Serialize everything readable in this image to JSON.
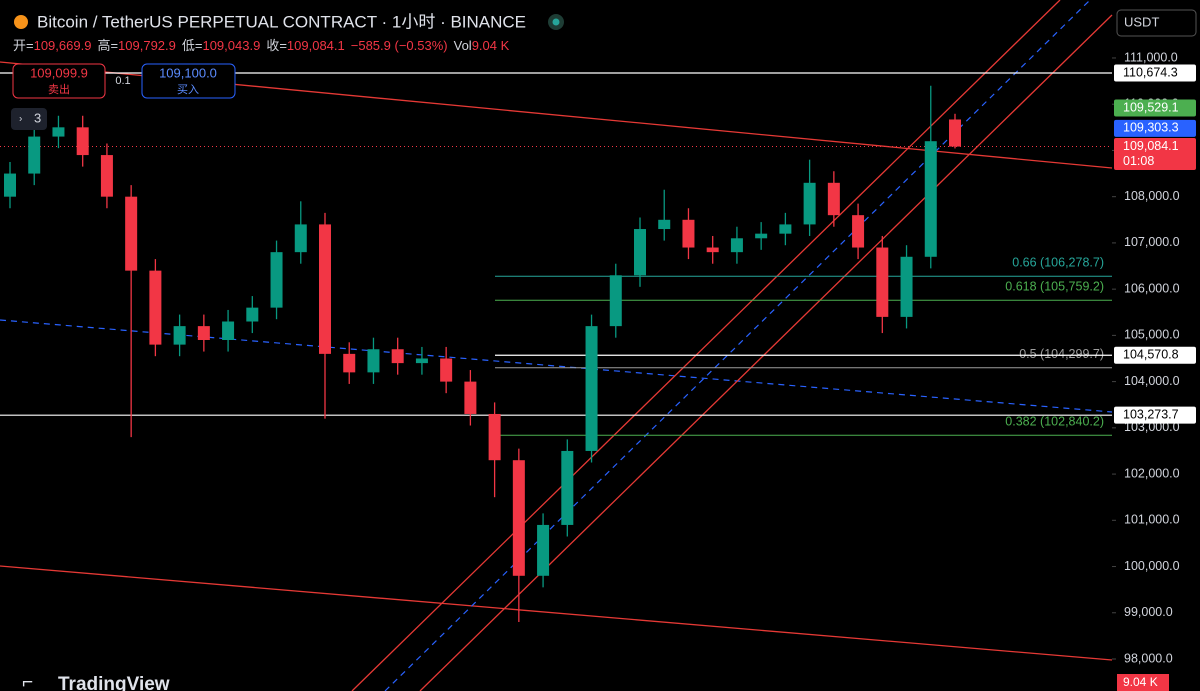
{
  "chart_data": {
    "type": "candlestick",
    "title": "Bitcoin / TetherUS PERPETUAL CONTRACT · 1小时 · BINANCE",
    "ohlc_header": [
      {
        "key": "开=",
        "val": "109,669.9"
      },
      {
        "key": "高=",
        "val": "109,792.9"
      },
      {
        "key": "低=",
        "val": "109,043.9"
      },
      {
        "key": "收=",
        "val": "109,084.1"
      }
    ],
    "change_text": "−585.9 (−0.53%)",
    "volume_key": "Vol",
    "volume_text": "9.04 K",
    "sell_price": "109,099.9",
    "sell_label": "卖出",
    "spread": "0.1",
    "buy_price": "109,100.0",
    "buy_label": "买入",
    "indicator_count": "3",
    "currency": "USDT",
    "brand": "TradingView",
    "up_color": "#089981",
    "down_color": "#f23645",
    "open": [
      108000,
      108500,
      109300,
      109500,
      108900,
      108000,
      106400,
      104800,
      105200,
      104900,
      105300,
      105600,
      106800,
      107400,
      104600,
      104200,
      104700,
      104400,
      104500,
      104000,
      103300,
      102300,
      99800,
      100900,
      102500,
      105200,
      106300,
      107300,
      107500,
      106900,
      106800,
      107100,
      107200,
      107400,
      108300,
      107600,
      106900,
      105400,
      106700,
      109669.9
    ],
    "high": [
      108750,
      109550,
      109750,
      109750,
      109150,
      108250,
      106650,
      105450,
      105450,
      105550,
      105850,
      107050,
      107900,
      107650,
      104850,
      104950,
      104950,
      104750,
      104750,
      104250,
      103550,
      102550,
      101150,
      102750,
      105450,
      106550,
      107550,
      108150,
      107750,
      107150,
      107350,
      107450,
      107650,
      108800,
      108550,
      107850,
      107150,
      106950,
      110400,
      109792.9
    ],
    "low": [
      107750,
      108250,
      109050,
      108650,
      107750,
      102800,
      104550,
      104550,
      104650,
      104650,
      105050,
      105350,
      106550,
      103200,
      103950,
      103950,
      104150,
      104150,
      103750,
      103050,
      101500,
      98800,
      99550,
      100650,
      102250,
      104950,
      106050,
      107050,
      106650,
      106550,
      106550,
      106850,
      106950,
      107150,
      107350,
      106650,
      105050,
      105150,
      106450,
      109043.9
    ],
    "close": [
      108500,
      109300,
      109500,
      108900,
      108000,
      106400,
      104800,
      105200,
      104900,
      105300,
      105600,
      106800,
      107400,
      104600,
      104200,
      104700,
      104400,
      104500,
      104000,
      103300,
      102300,
      99800,
      100900,
      102500,
      105200,
      106300,
      107300,
      107500,
      106900,
      106800,
      107100,
      107200,
      107400,
      108300,
      107600,
      106900,
      105400,
      106700,
      109200,
      109084.1
    ],
    "ylim": [
      97308,
      112254
    ],
    "yticks": [
      {
        "value": 98000,
        "label": "98,000.0"
      },
      {
        "value": 99000,
        "label": "99,000.0"
      },
      {
        "value": 100000,
        "label": "100,000.0"
      },
      {
        "value": 101000,
        "label": "101,000.0"
      },
      {
        "value": 102000,
        "label": "102,000.0"
      },
      {
        "value": 103000,
        "label": "103,000.0"
      },
      {
        "value": 104000,
        "label": "104,000.0"
      },
      {
        "value": 105000,
        "label": "105,000.0"
      },
      {
        "value": 106000,
        "label": "106,000.0"
      },
      {
        "value": 107000,
        "label": "107,000.0"
      },
      {
        "value": 108000,
        "label": "108,000.0"
      },
      {
        "value": 109000,
        "label": "109,000.0"
      },
      {
        "value": 110000,
        "label": "110,000.0"
      },
      {
        "value": 111000,
        "label": "111,000.0"
      }
    ],
    "price_tags": [
      {
        "value": 110674.3,
        "label": "110,674.3",
        "color": "#ffffff",
        "text_color": "#000000"
      },
      {
        "value": 109529.1,
        "label": "109,529.1",
        "color": "#4caf50",
        "text_color": "#ffffff"
      },
      {
        "value": 109303.3,
        "label": "109,303.3",
        "color": "#2962ff",
        "text_color": "#ffffff"
      },
      {
        "value": 109084.1,
        "label": "109,084.1",
        "color": "#f23645",
        "text_color": "#ffffff",
        "countdown": "01:08"
      },
      {
        "value": 104570.8,
        "label": "104,570.8",
        "color": "#ffffff",
        "text_color": "#000000"
      },
      {
        "value": 103273.7,
        "label": "103,273.7",
        "color": "#ffffff",
        "text_color": "#000000"
      }
    ],
    "fib_levels": [
      {
        "value": 106278.7,
        "label": "0.66 (106,278.7)",
        "color": "#26a69a"
      },
      {
        "value": 105759.2,
        "label": "0.618 (105,759.2)",
        "color": "#4caf50"
      },
      {
        "value": 104299.7,
        "label": "0.5 (104,299.7)",
        "color": "#9e9e9e"
      },
      {
        "value": 102840.2,
        "label": "0.382 (102,840.2)",
        "color": "#4caf50"
      }
    ]
  }
}
